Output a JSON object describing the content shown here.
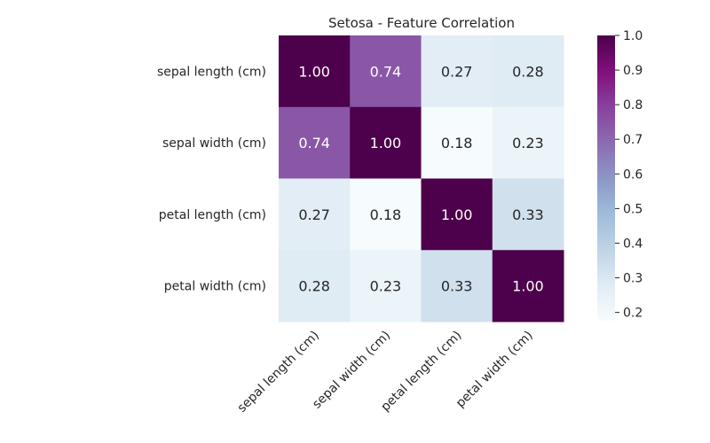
{
  "chart_data": {
    "type": "heatmap",
    "title": "Setosa - Feature Correlation",
    "rows": [
      "sepal length (cm)",
      "sepal width (cm)",
      "petal length (cm)",
      "petal width (cm)"
    ],
    "columns": [
      "sepal length (cm)",
      "sepal width (cm)",
      "petal length (cm)",
      "petal width (cm)"
    ],
    "values": [
      [
        1.0,
        0.74,
        0.27,
        0.28
      ],
      [
        0.74,
        1.0,
        0.18,
        0.23
      ],
      [
        0.27,
        0.18,
        1.0,
        0.33
      ],
      [
        0.28,
        0.23,
        0.33,
        1.0
      ]
    ],
    "value_format": "2 decimals",
    "colormap": "BuPu",
    "colorbar": {
      "range": [
        0.176,
        1.0
      ],
      "ticks": [
        "0.2",
        "0.3",
        "0.4",
        "0.5",
        "0.6",
        "0.7",
        "0.8",
        "0.9",
        "1.0"
      ]
    },
    "xlabel": "",
    "ylabel": "",
    "x_tick_rotation": 45
  }
}
